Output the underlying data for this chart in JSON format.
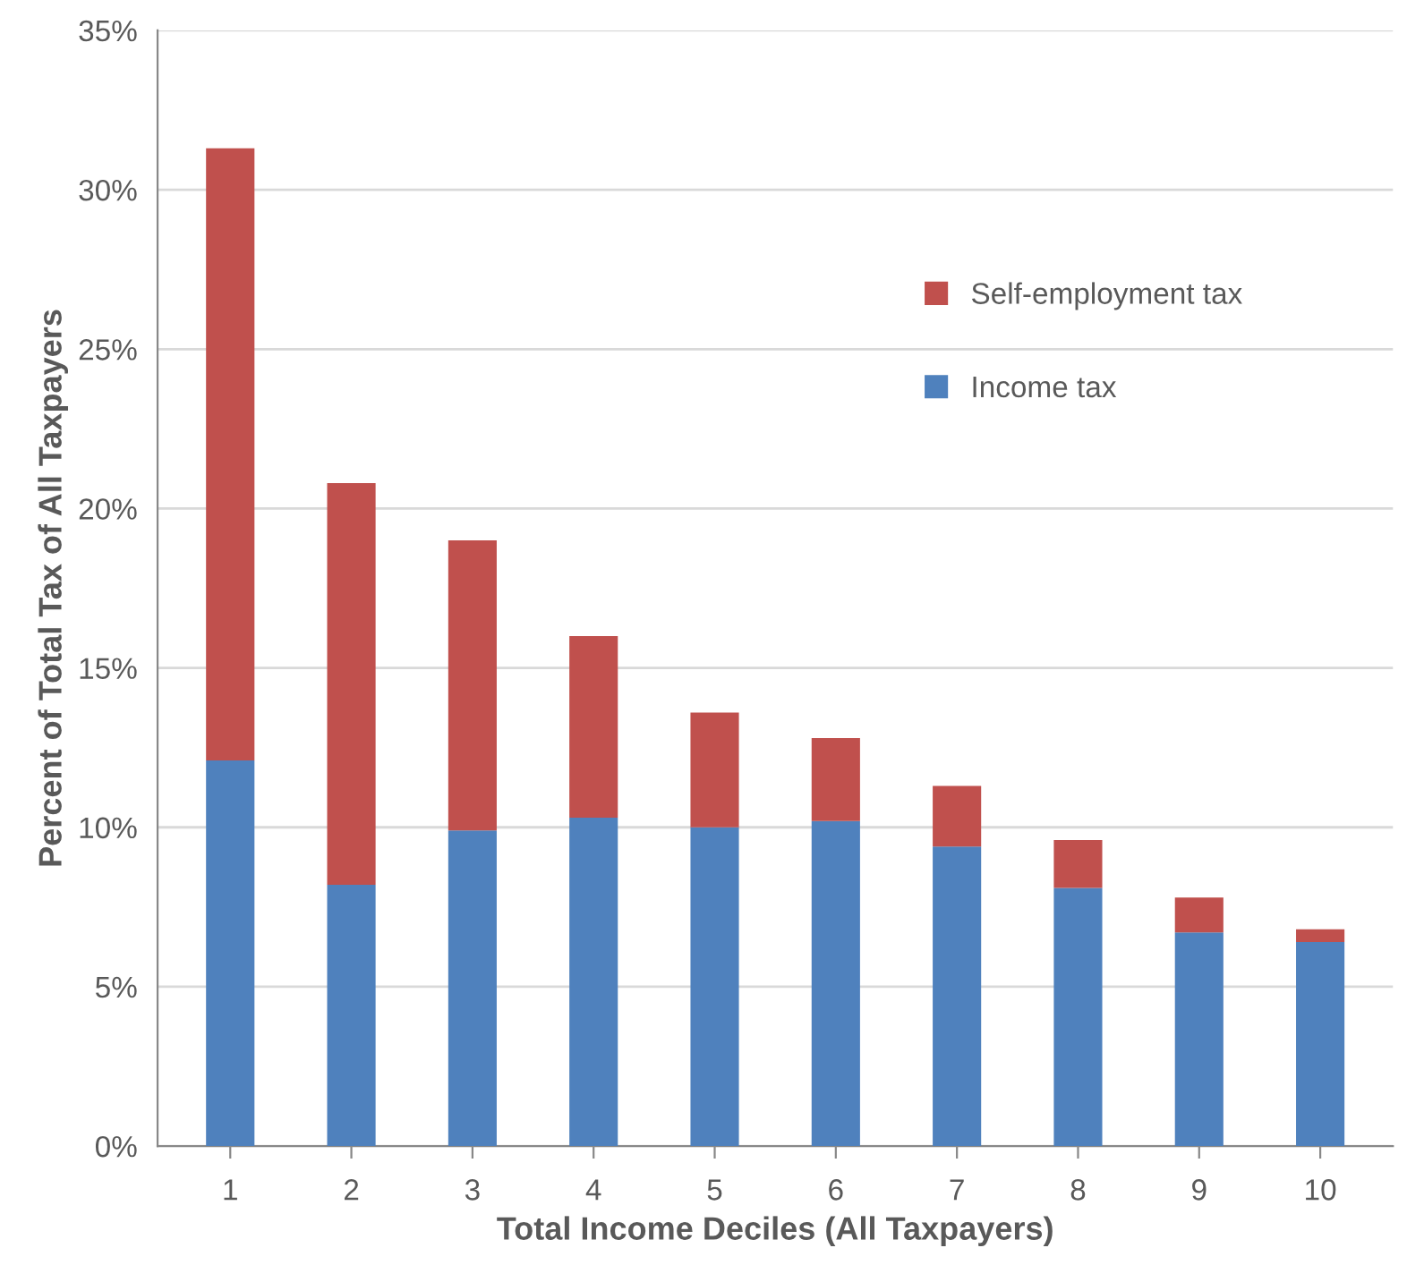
{
  "chart_data": {
    "type": "bar",
    "stacked": true,
    "xlabel": "Total Income Deciles (All Taxpayers)",
    "ylabel": "Percent of Total Tax of All Taxpayers",
    "categories": [
      "1",
      "2",
      "3",
      "4",
      "5",
      "6",
      "7",
      "8",
      "9",
      "10"
    ],
    "series": [
      {
        "name": "Income tax",
        "color": "#4f81bd",
        "values": [
          12.1,
          8.2,
          9.9,
          10.3,
          10.0,
          10.2,
          9.4,
          8.1,
          6.7,
          6.4
        ]
      },
      {
        "name": "Self-employment tax",
        "color": "#c0504d",
        "values": [
          19.2,
          12.6,
          9.1,
          5.7,
          3.6,
          2.6,
          1.9,
          1.5,
          1.1,
          0.4
        ]
      }
    ],
    "ylim": [
      0,
      35
    ],
    "yticks": [
      {
        "value": 0,
        "label": "0%"
      },
      {
        "value": 5,
        "label": "5%"
      },
      {
        "value": 10,
        "label": "10%"
      },
      {
        "value": 15,
        "label": "15%"
      },
      {
        "value": 20,
        "label": "20%"
      },
      {
        "value": 25,
        "label": "25%"
      },
      {
        "value": 30,
        "label": "30%"
      },
      {
        "value": 35,
        "label": "35%"
      }
    ],
    "grid": "y",
    "legend": "right"
  }
}
